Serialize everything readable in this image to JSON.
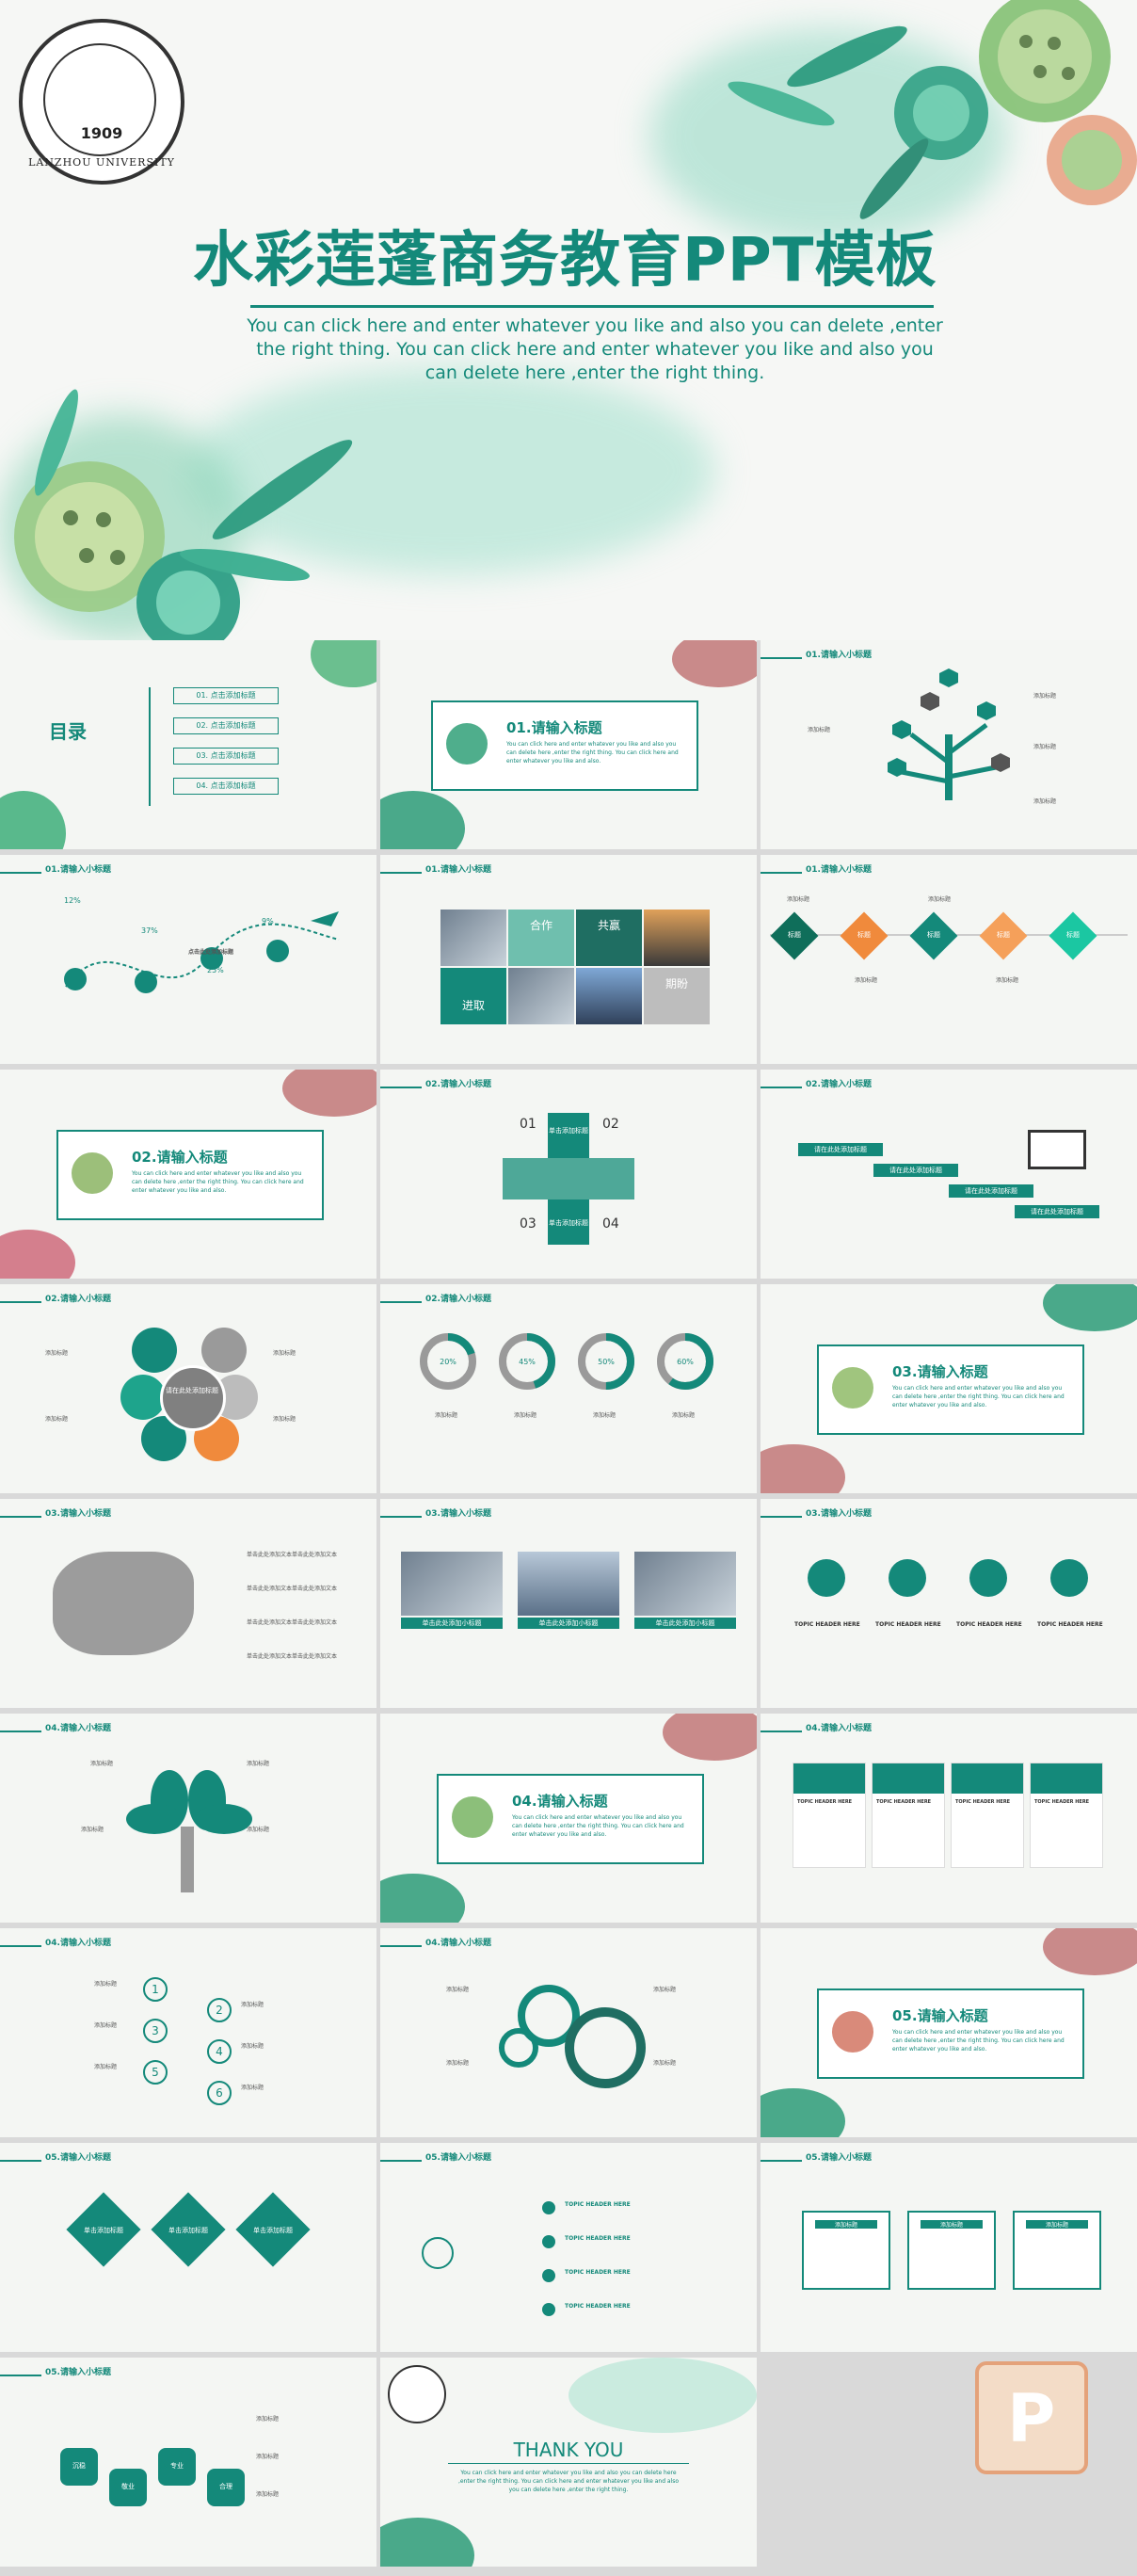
{
  "hero": {
    "title": "水彩莲蓬商务教育PPT模板",
    "description": "You can click here and enter whatever you like and also you can delete ,enter the right thing. You can click here and enter whatever you like and also you can delete here ,enter the right thing.",
    "seal_year": "1909",
    "seal_text": "LANZHOU UNIVERSITY"
  },
  "slides": {
    "toc": {
      "title": "目录",
      "items": [
        "01. 点击添加标题",
        "02. 点击添加标题",
        "03. 点击添加标题",
        "04. 点击添加标题"
      ]
    },
    "section1": {
      "title": "01.请输入标题",
      "text": "You can click here and enter whatever you like and also you can delete here ,enter the right thing. You can click here and enter whatever you like and also."
    },
    "tree": {
      "head": "01.请输入小标题",
      "labels": [
        "添加标题",
        "添加标题",
        "添加标题",
        "添加标题"
      ]
    },
    "timeline": {
      "head": "01.请输入小标题",
      "percents": [
        "12%",
        "37%",
        "25%",
        "9%"
      ],
      "label": "点击此处添加标题"
    },
    "photos": {
      "head": "01.请输入小标题",
      "tiles": [
        "合作",
        "共赢",
        "进取",
        "期盼"
      ]
    },
    "diamonds": {
      "head": "01.请输入小标题",
      "labels": [
        "标题",
        "标题",
        "标题",
        "标题",
        "标题"
      ],
      "caption": "添加标题"
    },
    "section2": {
      "title": "02.请输入标题",
      "text": "You can click here and enter whatever you like and also you can delete here ,enter the right thing. You can click here and enter whatever you like and also."
    },
    "cross": {
      "head": "02.请输入小标题",
      "nums": [
        "01",
        "02",
        "03",
        "04"
      ],
      "label": "单击添加标题"
    },
    "ribbons": {
      "head": "02.请输入小标题",
      "labels": [
        "请在此处添加标题",
        "请在此处添加标题",
        "请在此处添加标题",
        "请在此处添加标题"
      ]
    },
    "flower": {
      "head": "02.请输入小标题",
      "center": "请在此处添加标题",
      "label": "添加标题"
    },
    "donuts": {
      "head": "02.请输入小标题",
      "values": [
        20,
        45,
        50,
        60
      ],
      "labels": [
        "20%",
        "45%",
        "50%",
        "60%"
      ],
      "caption": "添加标题"
    },
    "section3": {
      "title": "03.请输入标题",
      "text": "You can click here and enter whatever you like and also you can delete here ,enter the right thing. You can click here and enter whatever you like and also."
    },
    "map": {
      "head": "03.请输入小标题",
      "label": "单击此处添加文本单击此处添加文本"
    },
    "pictures": {
      "head": "03.请输入小标题",
      "captions": [
        "单击此处添加小标题",
        "单击此处添加小标题",
        "单击此处添加小标题"
      ]
    },
    "medals": {
      "head": "03.请输入小标题",
      "label": "TOPIC HEADER HERE"
    },
    "treeleaf": {
      "head": "04.请输入小标题",
      "label": "添加标题"
    },
    "section4": {
      "title": "04.请输入标题",
      "text": "You can click here and enter whatever you like and also you can delete here ,enter the right thing. You can click here and enter whatever you like and also."
    },
    "cards": {
      "head": "04.请输入小标题",
      "label": "TOPIC HEADER HERE"
    },
    "numbers": {
      "head": "04.请输入小标题",
      "nums": [
        "1",
        "2",
        "3",
        "4",
        "5",
        "6"
      ],
      "label": "添加标题"
    },
    "gears": {
      "head": "04.请输入小标题",
      "label": "添加标题"
    },
    "section5": {
      "title": "05.请输入标题",
      "text": "You can click here and enter whatever you like and also you can delete here ,enter the right thing. You can click here and enter whatever you like and also."
    },
    "rhombus": {
      "head": "05.请输入小标题",
      "label": "单击添加标题"
    },
    "people": {
      "head": "05.请输入小标题",
      "label": "TOPIC HEADER HERE"
    },
    "notes": {
      "head": "05.请输入小标题",
      "label": "添加标题"
    },
    "hex": {
      "head": "05.请输入小标题",
      "labels": [
        "沉稳",
        "敬业",
        "专业",
        "合理"
      ],
      "caption": "添加标题"
    },
    "thanks": {
      "title": "THANK YOU",
      "text": "You can click here and enter whatever you like and also you can delete here ,enter the right thing. You can click here and enter whatever you like and also you can delete here ,enter the right thing."
    }
  },
  "colors": {
    "teal": "#14897a",
    "orange": "#f08a3c",
    "gray": "#9a9a9a"
  }
}
